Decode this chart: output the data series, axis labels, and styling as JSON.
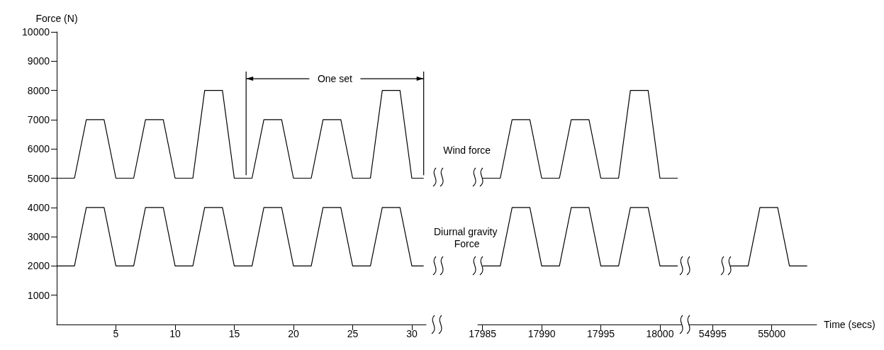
{
  "chart_data": [
    {
      "type": "line",
      "ylabel": "Force (N)",
      "xlim": [
        0,
        31.2
      ],
      "xticks": [
        5,
        10,
        15,
        20,
        25,
        30
      ],
      "ylim": [
        0,
        10000
      ],
      "yticks": [
        1000,
        2000,
        3000,
        4000,
        5000,
        6000,
        7000,
        8000,
        9000,
        10000
      ],
      "grid": false,
      "legend": false,
      "marker": "none",
      "line_style": "solid",
      "annotations": [
        {
          "text": "One set",
          "x": 31,
          "y": 8400
        }
      ],
      "ref_lines": [
        {
          "axis": "x",
          "value": 16
        },
        {
          "axis": "x",
          "value": 31
        }
      ],
      "series": [
        {
          "color": "#000000",
          "x": [
            0,
            1.5,
            2.5,
            4,
            5,
            6.5,
            7.5,
            9,
            10,
            11.5,
            12.5,
            14,
            15,
            16.5,
            17.5,
            19,
            20,
            21.5,
            22.5,
            24,
            25,
            26.5,
            27.5,
            29,
            30,
            31
          ],
          "values": [
            5000,
            5000,
            7000,
            7000,
            5000,
            5000,
            7000,
            7000,
            5000,
            5000,
            8000,
            8000,
            5000,
            5000,
            7000,
            7000,
            5000,
            5000,
            7000,
            7000,
            5000,
            5000,
            8000,
            8000,
            5000,
            5000
          ]
        },
        {
          "color": "#000000",
          "x": [
            0,
            1.5,
            2.5,
            4,
            5,
            6.5,
            7.5,
            9,
            10,
            11.5,
            12.5,
            14,
            15,
            16.5,
            17.5,
            19,
            20,
            21.5,
            22.5,
            24,
            25,
            26.5,
            27.5,
            29,
            30,
            31
          ],
          "values": [
            2000,
            2000,
            4000,
            4000,
            2000,
            2000,
            4000,
            4000,
            2000,
            2000,
            4000,
            4000,
            2000,
            2000,
            4000,
            4000,
            2000,
            2000,
            4000,
            4000,
            2000,
            2000,
            4000,
            4000,
            2000,
            2000
          ]
        }
      ]
    },
    {
      "type": "line",
      "xlim": [
        17984.6,
        18001.8
      ],
      "xticks": [
        17985,
        17990,
        17995,
        18000
      ],
      "ylim": [
        0,
        10000
      ],
      "tick_labels": "x",
      "grid": false,
      "legend": false,
      "marker": "none",
      "line_style": "solid",
      "series": [
        {
          "name": "Wind force",
          "color": "#000000",
          "x": [
            17985,
            17986.5,
            17987.5,
            17989,
            17990,
            17991.5,
            17992.5,
            17994,
            17995,
            17996.5,
            17997.5,
            17999,
            18000,
            18001.5
          ],
          "values": [
            5000,
            5000,
            7000,
            7000,
            5000,
            5000,
            7000,
            7000,
            5000,
            5000,
            8000,
            8000,
            5000,
            5000
          ]
        },
        {
          "name": "Diurnal gravity Force",
          "color": "#000000",
          "x": [
            17985,
            17986.5,
            17987.5,
            17989,
            17990,
            17991.5,
            17992.5,
            17994,
            17995,
            17996.5,
            17997.5,
            17999,
            18000,
            18001.5
          ],
          "values": [
            2000,
            2000,
            4000,
            4000,
            2000,
            2000,
            4000,
            4000,
            2000,
            2000,
            4000,
            4000,
            2000,
            2000
          ]
        }
      ]
    },
    {
      "type": "line",
      "xlabel": "Time (secs)",
      "xlim": [
        54993,
        55003.8
      ],
      "xticks": [
        54995,
        55000
      ],
      "ylim": [
        0,
        10000
      ],
      "tick_labels": "x",
      "grid": false,
      "legend": false,
      "marker": "none",
      "line_style": "solid",
      "series": [
        {
          "color": "#000000",
          "x": [
            54996.5,
            54998,
            54999,
            55000.5,
            55001.5,
            55003
          ],
          "values": [
            2000,
            2000,
            4000,
            4000,
            2000,
            2000
          ]
        }
      ]
    }
  ]
}
